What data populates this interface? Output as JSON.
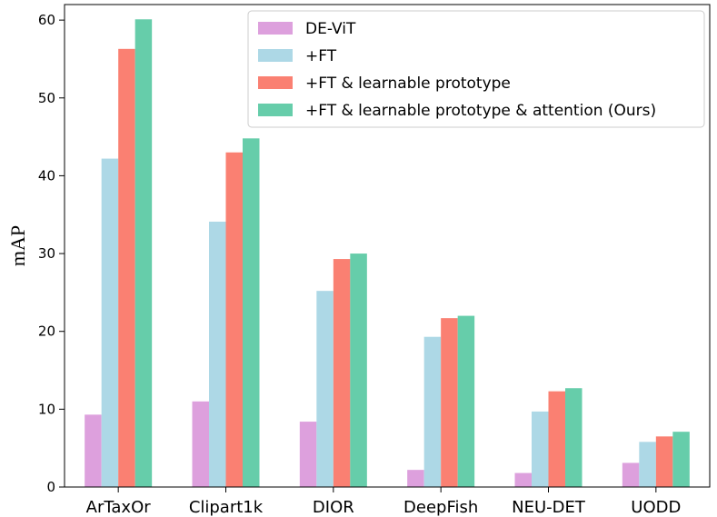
{
  "chart_data": {
    "type": "bar",
    "title": "",
    "xlabel": "",
    "ylabel": "mAP",
    "ylim": [
      0,
      62
    ],
    "yticks": [
      0,
      10,
      20,
      30,
      40,
      50,
      60
    ],
    "categories": [
      "ArTaxOr",
      "Clipart1k",
      "DIOR",
      "DeepFish",
      "NEU-DET",
      "UODD"
    ],
    "series": [
      {
        "name": "DE-ViT",
        "color": "#dda0dd",
        "values": [
          9.3,
          11.0,
          8.4,
          2.2,
          1.8,
          3.1
        ]
      },
      {
        "name": "+FT",
        "color": "#add8e6",
        "values": [
          42.2,
          34.1,
          25.2,
          19.3,
          9.7,
          5.8
        ]
      },
      {
        "name": "+FT & learnable prototype",
        "color": "#fa8072",
        "values": [
          56.3,
          43.0,
          29.3,
          21.7,
          12.3,
          6.5
        ]
      },
      {
        "name": "+FT & learnable prototype & attention (Ours)",
        "color": "#66cdaa",
        "values": [
          60.1,
          44.8,
          30.0,
          22.0,
          12.7,
          7.1
        ]
      }
    ],
    "legend_position": "top-right"
  }
}
